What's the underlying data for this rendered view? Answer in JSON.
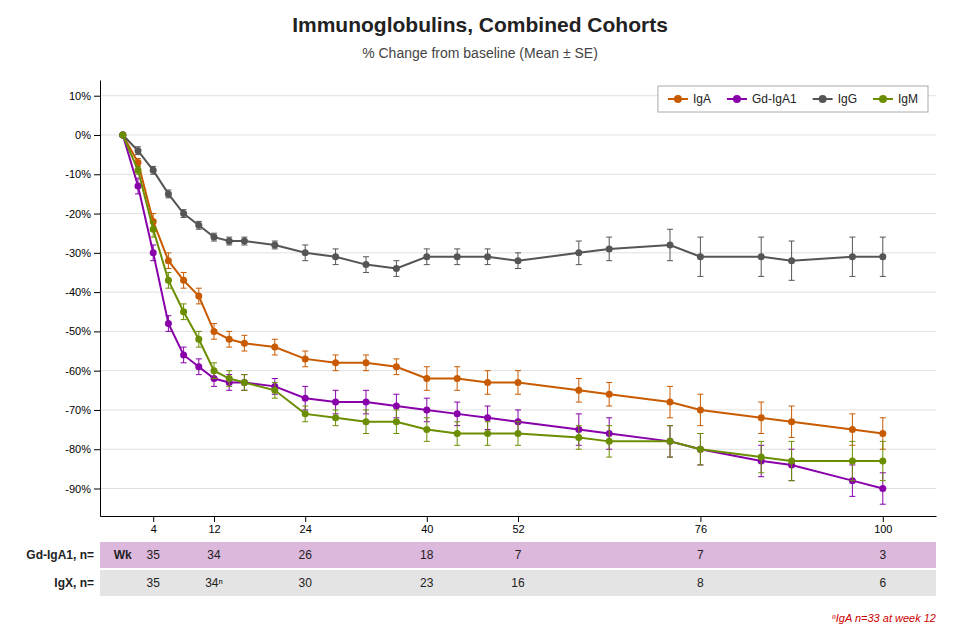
{
  "chart_data": {
    "type": "line",
    "title": "Immunoglobulins, Combined Cohorts",
    "subtitle": "% Change from baseline (Mean ± SE)",
    "marker": "circle",
    "grid": true,
    "legend": "upper right",
    "x": [
      0,
      2,
      4,
      6,
      8,
      10,
      12,
      14,
      16,
      20,
      24,
      28,
      32,
      36,
      40,
      44,
      48,
      52,
      60,
      64,
      72,
      76,
      84,
      88,
      96,
      100
    ],
    "xlim": [
      -3,
      107
    ],
    "xticks": [
      4,
      12,
      24,
      40,
      52,
      76,
      100
    ],
    "ylim": [
      -97,
      14
    ],
    "yticks": [
      {
        "value": 10,
        "label": "10%"
      },
      {
        "value": 0,
        "label": "0%"
      },
      {
        "value": -10,
        "label": "-10%"
      },
      {
        "value": -20,
        "label": "-20%"
      },
      {
        "value": -30,
        "label": "-30%"
      },
      {
        "value": -40,
        "label": "-40%"
      },
      {
        "value": -50,
        "label": "-50%"
      },
      {
        "value": -60,
        "label": "-60%"
      },
      {
        "value": -70,
        "label": "-70%"
      },
      {
        "value": -80,
        "label": "-80%"
      },
      {
        "value": -90,
        "label": "-90%"
      }
    ],
    "series": [
      {
        "name": "IgA",
        "color": "#c85a00",
        "values": [
          0,
          -7,
          -22,
          -32,
          -37,
          -41,
          -50,
          -52,
          -53,
          -54,
          -57,
          -58,
          -58,
          -59,
          -62,
          -62,
          -63,
          -63,
          -65,
          -66,
          -68,
          -70,
          -72,
          -73,
          -75,
          -76
        ],
        "errors": [
          0,
          1,
          2,
          2,
          2,
          2,
          2,
          2,
          2,
          2,
          2,
          2,
          2,
          2,
          3,
          3,
          3,
          3,
          3,
          3,
          4,
          4,
          4,
          4,
          4,
          4
        ]
      },
      {
        "name": "Gd-IgA1",
        "color": "#8800aa",
        "values": [
          0,
          -13,
          -30,
          -48,
          -56,
          -59,
          -62,
          -63,
          -63,
          -64,
          -67,
          -68,
          -68,
          -69,
          -70,
          -71,
          -72,
          -73,
          -75,
          -76,
          -78,
          -80,
          -83,
          -84,
          -88,
          -90
        ],
        "errors": [
          0,
          2,
          2,
          2,
          2,
          2,
          2,
          2,
          2,
          2,
          3,
          3,
          3,
          3,
          3,
          3,
          3,
          3,
          4,
          4,
          4,
          4,
          4,
          4,
          4,
          4
        ]
      },
      {
        "name": "IgG",
        "color": "#555555",
        "values": [
          0,
          -4,
          -9,
          -15,
          -20,
          -23,
          -26,
          -27,
          -27,
          -28,
          -30,
          -31,
          -33,
          -34,
          -31,
          -31,
          -31,
          -32,
          -30,
          -29,
          -28,
          -31,
          -31,
          -32,
          -31,
          -31
        ],
        "errors": [
          0,
          1,
          1,
          1,
          1,
          1,
          1,
          1,
          1,
          1,
          2,
          2,
          2,
          2,
          2,
          2,
          2,
          2,
          3,
          3,
          4,
          5,
          5,
          5,
          5,
          5
        ]
      },
      {
        "name": "IgM",
        "color": "#6b8e00",
        "values": [
          0,
          -9,
          -24,
          -37,
          -45,
          -52,
          -60,
          -62,
          -63,
          -65,
          -71,
          -72,
          -73,
          -73,
          -75,
          -76,
          -76,
          -76,
          -77,
          -78,
          -78,
          -80,
          -82,
          -83,
          -83,
          -83
        ],
        "errors": [
          0,
          1,
          2,
          2,
          2,
          2,
          2,
          2,
          2,
          2,
          2,
          2,
          3,
          3,
          3,
          3,
          3,
          3,
          3,
          4,
          4,
          4,
          4,
          5,
          5,
          5
        ]
      }
    ],
    "table": {
      "x_label": "Wk",
      "x": [
        4,
        12,
        24,
        40,
        52,
        76,
        100
      ],
      "rows": [
        {
          "label": "Gd-IgA1, n=",
          "color": "#ddb8dd",
          "values": [
            "35",
            "34",
            "26",
            "18",
            "7",
            "7",
            "3"
          ]
        },
        {
          "label": "IgX, n=",
          "color": "#e4e4e4",
          "values": [
            "35",
            "34ⁿ",
            "30",
            "23",
            "16",
            "8",
            "6"
          ]
        }
      ]
    },
    "footnote": {
      "text": "ⁿIgA n=33 at week 12",
      "color": "#cc0000"
    }
  }
}
